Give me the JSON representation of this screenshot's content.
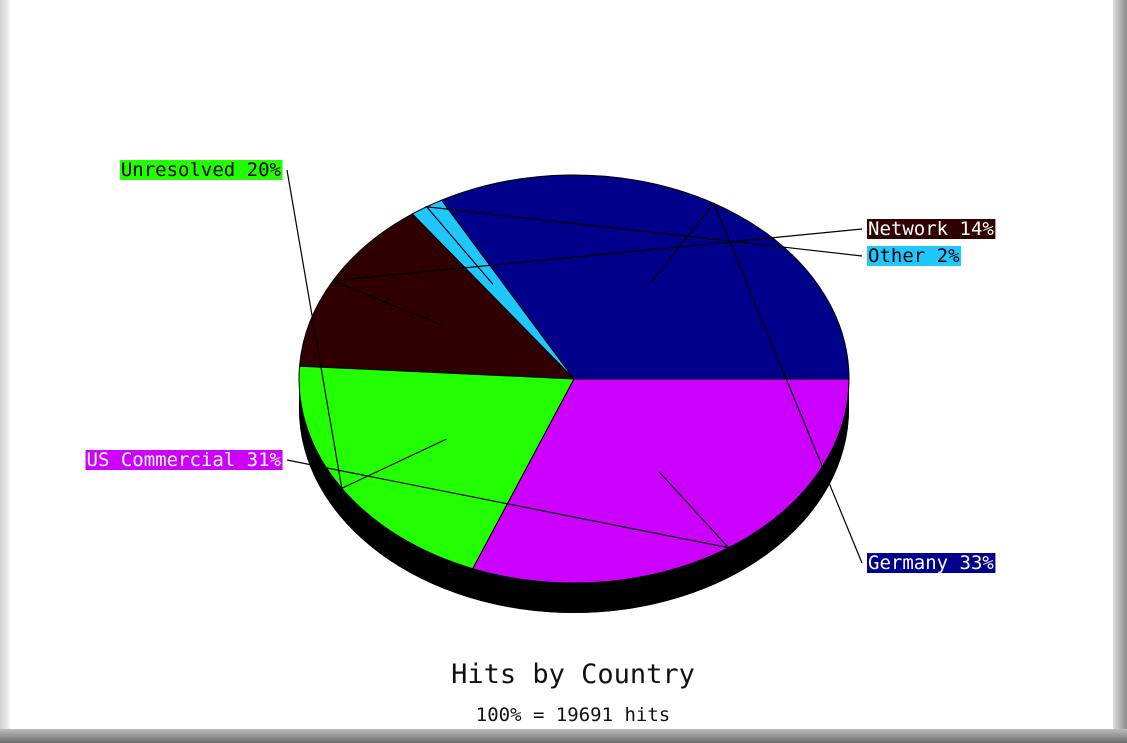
{
  "chart_data": {
    "type": "pie",
    "title": "Hits by Country",
    "subtitle": "100% = 19691 hits",
    "slices": [
      {
        "label": "Germany 33%",
        "value": 33,
        "color": "#00008b",
        "text_color": "#ffffff"
      },
      {
        "label": "Other 2%",
        "value": 2,
        "color": "#1ec8ff",
        "text_color": "#000000"
      },
      {
        "label": "Network 14%",
        "value": 14,
        "color": "#300000",
        "text_color": "#ffffff"
      },
      {
        "label": "Unresolved 20%",
        "value": 20,
        "color": "#22ff00",
        "text_color": "#000000"
      },
      {
        "label": "US Commercial 31%",
        "value": 31,
        "color": "#cc00ff",
        "text_color": "#ffffff"
      }
    ]
  }
}
